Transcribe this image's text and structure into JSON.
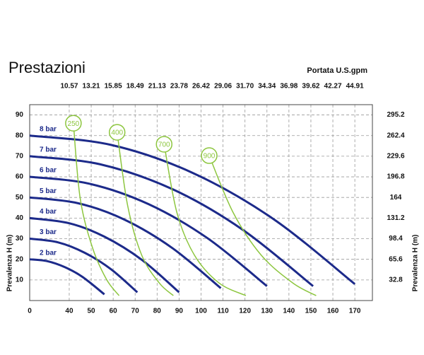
{
  "chart_data": {
    "type": "line",
    "title": "Prestazioni",
    "x2_label": "Portata U.S.gpm",
    "ylabel": "Prevalenza H (m)",
    "y2label": "Prevalenza H (m)",
    "origin_label": "0",
    "xlim": [
      22,
      178
    ],
    "xticks": [
      40,
      50,
      60,
      70,
      80,
      90,
      100,
      110,
      120,
      130,
      140,
      150,
      160,
      170
    ],
    "x2ticks": [
      {
        "value": 40,
        "label": "10.57"
      },
      {
        "value": 50,
        "label": "13.21"
      },
      {
        "value": 60,
        "label": "15.85"
      },
      {
        "value": 70,
        "label": "18.49"
      },
      {
        "value": 80,
        "label": "21.13"
      },
      {
        "value": 90,
        "label": "23.78"
      },
      {
        "value": 100,
        "label": "26.42"
      },
      {
        "value": 110,
        "label": "29.06"
      },
      {
        "value": 120,
        "label": "31.70"
      },
      {
        "value": 130,
        "label": "34.34"
      },
      {
        "value": 140,
        "label": "36.98"
      },
      {
        "value": 150,
        "label": "39.62"
      },
      {
        "value": 160,
        "label": "42.27"
      },
      {
        "value": 170,
        "label": "44.91"
      }
    ],
    "ylim": [
      0,
      95
    ],
    "yticks": [
      10,
      20,
      30,
      40,
      50,
      60,
      70,
      80,
      90
    ],
    "y2lim": [
      0,
      311.6
    ],
    "y2ticks": [
      32.8,
      65.6,
      98.4,
      131.2,
      164,
      196.8,
      229.6,
      262.4,
      295.2
    ],
    "grid": true,
    "series": [
      {
        "name": "2 bar",
        "color": "#1c2a8a",
        "x": [
          22,
          30,
          38,
          46,
          56
        ],
        "values": [
          20,
          19.1,
          16.2,
          11.5,
          3
        ]
      },
      {
        "name": "3 bar",
        "color": "#1c2a8a",
        "x": [
          22,
          35,
          47,
          59,
          71
        ],
        "values": [
          30,
          28.2,
          23.2,
          15.2,
          4
        ]
      },
      {
        "name": "4 bar",
        "color": "#1c2a8a",
        "x": [
          22,
          40,
          56,
          73,
          90
        ],
        "values": [
          40,
          37.5,
          31,
          19.8,
          4
        ]
      },
      {
        "name": "5 bar",
        "color": "#1c2a8a",
        "x": [
          22,
          44,
          65,
          87,
          109
        ],
        "values": [
          50,
          47.2,
          39.3,
          25.4,
          6
        ]
      },
      {
        "name": "6 bar",
        "color": "#1c2a8a",
        "x": [
          22,
          49,
          76,
          103,
          130
        ],
        "values": [
          60,
          56.7,
          46.8,
          30.2,
          7
        ]
      },
      {
        "name": "7 bar",
        "color": "#1c2a8a",
        "x": [
          22,
          54,
          87,
          119,
          151
        ],
        "values": [
          70,
          66.1,
          54,
          34.3,
          7
        ]
      },
      {
        "name": "8 bar",
        "color": "#1c2a8a",
        "x": [
          22,
          59,
          96,
          133,
          170
        ],
        "values": [
          80,
          75.5,
          62,
          39.5,
          8
        ]
      },
      {
        "name": "250",
        "color": "#8dc63f",
        "x": [
          41.9,
          45,
          50.6,
          57,
          62.7
        ],
        "values": [
          86,
          49.5,
          25.6,
          10.2,
          2.4
        ]
      },
      {
        "name": "400",
        "color": "#8dc63f",
        "x": [
          61.8,
          66.6,
          73,
          81,
          87.4
        ],
        "values": [
          81.6,
          46,
          22,
          8.5,
          2.4
        ]
      },
      {
        "name": "700",
        "color": "#8dc63f",
        "x": [
          83.2,
          89,
          97,
          108.2,
          120.4
        ],
        "values": [
          75.8,
          42.7,
          22,
          8.5,
          2.4
        ]
      },
      {
        "name": "900",
        "color": "#8dc63f",
        "x": [
          103.7,
          114.6,
          127.4,
          141.8,
          152.4
        ],
        "values": [
          70.3,
          42.7,
          22,
          8.5,
          2.4
        ]
      }
    ]
  }
}
